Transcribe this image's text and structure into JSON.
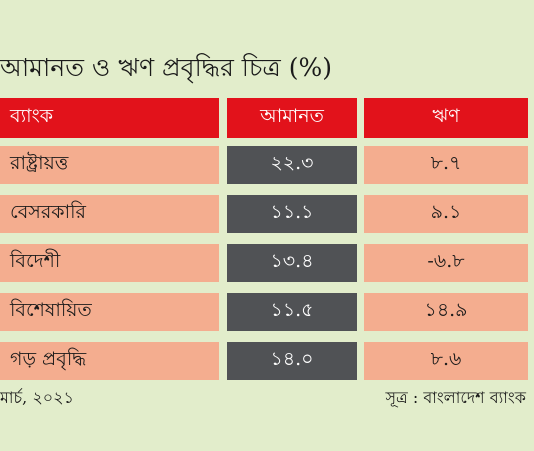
{
  "chart_data": {
    "type": "table",
    "title": "আমানত ও ঋণ প্রবৃদ্ধির চিত্র (%)",
    "columns": [
      "ব্যাংক",
      "আমানত",
      "ঋণ"
    ],
    "rows": [
      {
        "label": "রাষ্ট্রায়ত্ত",
        "deposit": "২২.৩",
        "loan": "৮.৭"
      },
      {
        "label": "বেসরকারি",
        "deposit": "১১.১",
        "loan": "৯.১"
      },
      {
        "label": "বিদেশী",
        "deposit": "১৩.৪",
        "loan": "-৬.৮"
      },
      {
        "label": "বিশেষায়িত",
        "deposit": "১১.৫",
        "loan": "১৪.৯"
      },
      {
        "label": "গড় প্রবৃদ্ধি",
        "deposit": "১৪.০",
        "loan": "৮.৬"
      }
    ],
    "colors": {
      "header": "#e2121b",
      "row_label": "#f4ad8f",
      "deposit_cell": "#505255",
      "loan_cell": "#f4ad8f",
      "background": "#e2edcb"
    }
  },
  "footer": {
    "date": "মার্চ, ২০২১",
    "source": "সূত্র : বাংলাদেশ ব্যাংক"
  }
}
